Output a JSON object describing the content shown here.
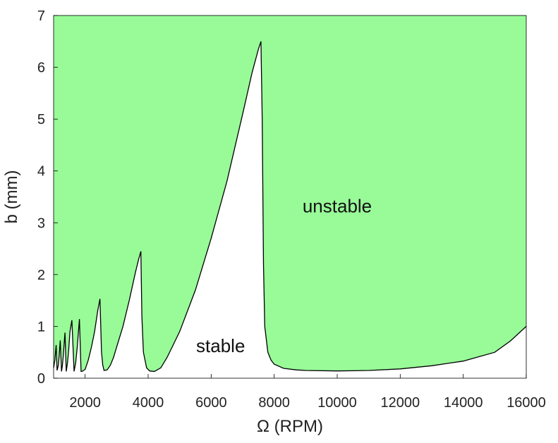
{
  "chart_data": {
    "type": "area",
    "title": "",
    "xlabel": "Ω (RPM)",
    "ylabel": "b (mm)",
    "xlim": [
      1000,
      16000
    ],
    "ylim": [
      0,
      7
    ],
    "xticks": [
      2000,
      4000,
      6000,
      8000,
      10000,
      12000,
      14000,
      16000
    ],
    "yticks": [
      0,
      1,
      2,
      3,
      4,
      5,
      6,
      7
    ],
    "grid": false,
    "legend": "none",
    "colors": {
      "unstable_fill": "#98fb98",
      "boundary": "#000000",
      "stable_fill": "#ffffff"
    },
    "annotations": [
      {
        "text": "unstable",
        "x": 10000,
        "y": 3.2
      },
      {
        "text": "stable",
        "x": 6300,
        "y": 0.5
      }
    ],
    "series": [
      {
        "name": "",
        "x": [
          1000,
          1040,
          1060,
          1080,
          1110,
          1150,
          1180,
          1210,
          1250,
          1280,
          1310,
          1360,
          1400,
          1440,
          1480,
          1520,
          1580,
          1650,
          1700,
          1750,
          1820,
          1870,
          1900,
          2000,
          2100,
          2200,
          2300,
          2400,
          2470,
          2520,
          2560,
          2600,
          2700,
          2800,
          2900,
          3000,
          3200,
          3400,
          3600,
          3700,
          3770,
          3800,
          3850,
          3950,
          4050,
          4200,
          4400,
          4600,
          5000,
          5500,
          6000,
          6500,
          7000,
          7300,
          7500,
          7580,
          7620,
          7660,
          7700,
          7800,
          7900,
          8000,
          8300,
          8700,
          9000,
          10000,
          11000,
          12000,
          13000,
          14000,
          15000,
          15500,
          16000
        ],
        "y": [
          0.2,
          0.35,
          0.5,
          0.64,
          0.15,
          0.25,
          0.45,
          0.73,
          0.13,
          0.25,
          0.45,
          0.88,
          0.13,
          0.3,
          0.55,
          0.9,
          1.12,
          0.13,
          0.3,
          0.6,
          1.14,
          0.13,
          0.13,
          0.17,
          0.35,
          0.6,
          0.9,
          1.3,
          1.53,
          0.5,
          0.25,
          0.15,
          0.16,
          0.25,
          0.4,
          0.6,
          1.0,
          1.5,
          2.05,
          2.3,
          2.45,
          1.2,
          0.5,
          0.2,
          0.14,
          0.13,
          0.2,
          0.4,
          0.9,
          1.7,
          2.7,
          3.8,
          5.1,
          5.9,
          6.35,
          6.5,
          5.0,
          2.2,
          1.0,
          0.5,
          0.35,
          0.27,
          0.19,
          0.16,
          0.15,
          0.14,
          0.15,
          0.18,
          0.24,
          0.33,
          0.5,
          0.72,
          1.0
        ]
      }
    ]
  }
}
